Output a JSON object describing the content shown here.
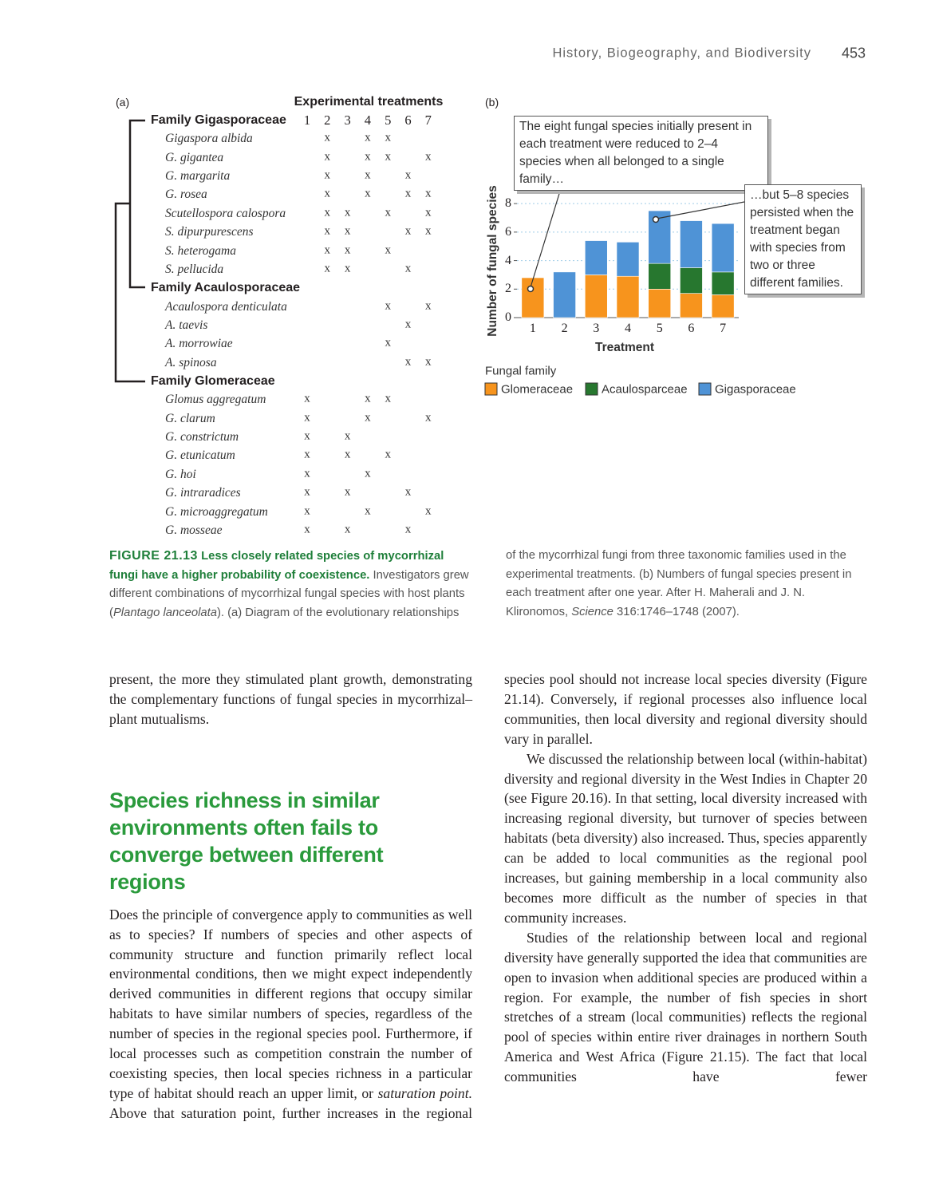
{
  "header": {
    "running_title": "History, Biogeography, and Biodiversity",
    "page_number": "453"
  },
  "table": {
    "panel_label": "(a)",
    "title": "Experimental treatments",
    "columns": [
      "1",
      "2",
      "3",
      "4",
      "5",
      "6",
      "7"
    ],
    "families": [
      {
        "name": "Family Gigasporaceae",
        "species": [
          {
            "name": "Gigaspora albida",
            "cells": [
              null,
              "x",
              null,
              "x",
              "x",
              null,
              null
            ]
          },
          {
            "name": "G. gigantea",
            "cells": [
              null,
              "x",
              null,
              "x",
              "x",
              null,
              "x"
            ]
          },
          {
            "name": "G. margarita",
            "cells": [
              null,
              "x",
              null,
              "x",
              null,
              "x",
              null
            ]
          },
          {
            "name": "G. rosea",
            "cells": [
              null,
              "x",
              null,
              "x",
              null,
              "x",
              "x"
            ]
          },
          {
            "name": "Scutellospora calospora",
            "cells": [
              null,
              "x",
              "x",
              null,
              "x",
              null,
              "x"
            ]
          },
          {
            "name": "S. dipurpurescens",
            "cells": [
              null,
              "x",
              "x",
              null,
              null,
              "x",
              "x"
            ]
          },
          {
            "name": "S. heterogama",
            "cells": [
              null,
              "x",
              "x",
              null,
              "x",
              null,
              null
            ]
          },
          {
            "name": "S. pellucida",
            "cells": [
              null,
              "x",
              "x",
              null,
              null,
              "x",
              null
            ]
          }
        ]
      },
      {
        "name": "Family Acaulosporaceae",
        "species": [
          {
            "name": "Acaulospora denticulata",
            "cells": [
              null,
              null,
              null,
              null,
              "x",
              null,
              "x"
            ]
          },
          {
            "name": "A. taevis",
            "cells": [
              null,
              null,
              null,
              null,
              null,
              "x",
              null
            ]
          },
          {
            "name": "A. morrowiae",
            "cells": [
              null,
              null,
              null,
              null,
              "x",
              null,
              null
            ]
          },
          {
            "name": "A. spinosa",
            "cells": [
              null,
              null,
              null,
              null,
              null,
              "x",
              "x"
            ]
          }
        ]
      },
      {
        "name": "Family Glomeraceae",
        "species": [
          {
            "name": "Glomus aggregatum",
            "cells": [
              "x",
              null,
              null,
              "x",
              "x",
              null,
              null
            ]
          },
          {
            "name": "G. clarum",
            "cells": [
              "x",
              null,
              null,
              "x",
              null,
              null,
              "x"
            ]
          },
          {
            "name": "G. constrictum",
            "cells": [
              "x",
              null,
              "x",
              null,
              null,
              null,
              null
            ]
          },
          {
            "name": "G. etunicatum",
            "cells": [
              "x",
              null,
              "x",
              null,
              "x",
              null,
              null
            ]
          },
          {
            "name": "G. hoi",
            "cells": [
              "x",
              null,
              null,
              "x",
              null,
              null,
              null
            ]
          },
          {
            "name": "G. intraradices",
            "cells": [
              "x",
              null,
              "x",
              null,
              null,
              "x",
              null
            ]
          },
          {
            "name": "G. microaggregatum",
            "cells": [
              "x",
              null,
              null,
              "x",
              null,
              null,
              "x"
            ]
          },
          {
            "name": "G. mosseae",
            "cells": [
              "x",
              null,
              "x",
              null,
              null,
              "x",
              null
            ]
          }
        ]
      }
    ]
  },
  "chart_data": {
    "type": "stacked_bar",
    "panel_label": "(b)",
    "x_label": "Treatment",
    "y_label": "Number of fungal species",
    "categories": [
      "1",
      "2",
      "3",
      "4",
      "5",
      "6",
      "7"
    ],
    "series": [
      {
        "name": "Glomeraceae",
        "color": "#f7941d",
        "values": [
          2.8,
          0,
          3.0,
          2.9,
          2.0,
          1.7,
          1.6
        ]
      },
      {
        "name": "Acaulosparceae",
        "color": "#27772f",
        "values": [
          0,
          0,
          0,
          0,
          1.8,
          1.8,
          1.6
        ]
      },
      {
        "name": "Gigasporaceae",
        "color": "#4f93d6",
        "values": [
          0,
          3.2,
          2.4,
          2.4,
          3.7,
          3.3,
          3.4
        ]
      }
    ],
    "ylim": [
      0,
      8.4
    ],
    "yticks": [
      0,
      2,
      4,
      6,
      8
    ],
    "grid": true,
    "legend_title": "Fungal family",
    "annotations": [
      {
        "text": "The eight fungal species initially present in each treatment were reduced to 2–4 species when all belonged to a single family…"
      },
      {
        "text": "…but 5–8 species persisted when the treatment began with species from two or three different families."
      }
    ]
  },
  "caption": {
    "label": "FIGURE 21.13",
    "title": "Less closely related species of mycorrhizal fungi have a higher probability of coexistence.",
    "text_1": "Investigators grew different combinations of mycorrhizal fungal species with host plants (",
    "italic_1": "Plantago lanceolata",
    "text_2": "). (a) Diagram of the evolutionary relationships of the mycorrhizal fungi from three taxonomic families used in the experimental treatments. (b) Numbers of fungal species present in each treatment after one year. After H. Maherali and J. N. Klironomos, ",
    "italic_2": "Science",
    "text_3": " 316:1746–1748 (2007)."
  },
  "body": {
    "left": {
      "paragraph_1": "present, the more they stimulated plant growth, demonstrating the complementary functions of fungal species in mycorrhizal–plant mutualisms.",
      "heading": "Species richness in similar environments often fails to converge between different regions",
      "paragraph_2": [
        "Does the principle of convergence apply to communities as well as to species? If numbers of species and other aspects of community structure and function primarily reflect local environmental conditions, then we might expect independently derived communities in different regions that occupy similar habitats to have similar numbers of species, regardless of the number of species in the regional species pool. Furthermore, if local processes such as competition constrain the number of coexisting species, then local species richness in a particular type of habitat should reach an upper limit, or ",
        "saturation point.",
        " Above that saturation point, further increases in the regional"
      ]
    },
    "right": {
      "paragraph_1": "species pool should not increase local species diversity (Figure 21.14). Conversely, if regional processes also influence local communities, then local diversity and regional diversity should vary in parallel.",
      "paragraph_2": "We discussed the relationship between local (within-habitat) diversity and regional diversity in the West Indies in Chapter 20 (see Figure 20.16). In that setting, local diversity increased with increasing regional diversity, but turnover of species between habitats (beta diversity) also increased. Thus, species apparently can be added to local communities as the regional pool increases, but gaining membership in a local community also becomes more difficult as the number of species in that community increases.",
      "paragraph_3": "Studies of the relationship between local and regional diversity have generally supported the idea that communities are open to invasion when additional species are produced within a region. For example, the number of fish species in short stretches of a stream (local communities) reflects the regional pool of species within entire river drainages in northern South America and West Africa (Figure 21.15). The fact that local communities have fewer"
    }
  }
}
